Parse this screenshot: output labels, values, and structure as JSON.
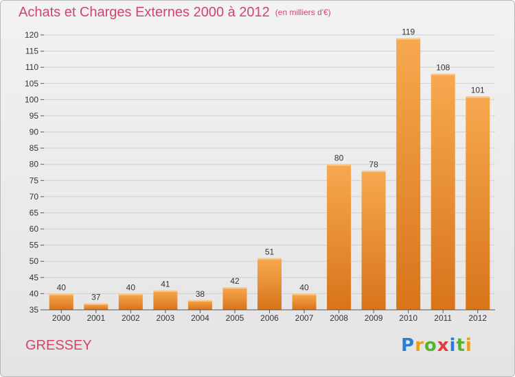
{
  "chart_data": {
    "type": "bar",
    "title": "Achats et Charges Externes 2000 à 2012",
    "unit_label": "(en milliers d'€)",
    "categories": [
      "2000",
      "2001",
      "2002",
      "2003",
      "2004",
      "2005",
      "2006",
      "2007",
      "2008",
      "2009",
      "2010",
      "2011",
      "2012"
    ],
    "values": [
      40,
      37,
      40,
      41,
      38,
      42,
      51,
      40,
      80,
      78,
      119,
      108,
      101
    ],
    "ylim": [
      35,
      120
    ],
    "yticks": [
      35,
      40,
      45,
      50,
      55,
      60,
      65,
      70,
      75,
      80,
      85,
      90,
      95,
      100,
      105,
      110,
      115,
      120
    ],
    "grid": true,
    "bar_color": "#f08c2e"
  },
  "place_name": "GRESSEY",
  "logo": {
    "letters": [
      "P",
      "r",
      "o",
      "x",
      "i",
      "t",
      "i"
    ],
    "colors": [
      "#2a7fd4",
      "#e8a21a",
      "#56b62a",
      "#e23a3a",
      "#2a7fd4",
      "#56b62a",
      "#e8a21a"
    ]
  }
}
